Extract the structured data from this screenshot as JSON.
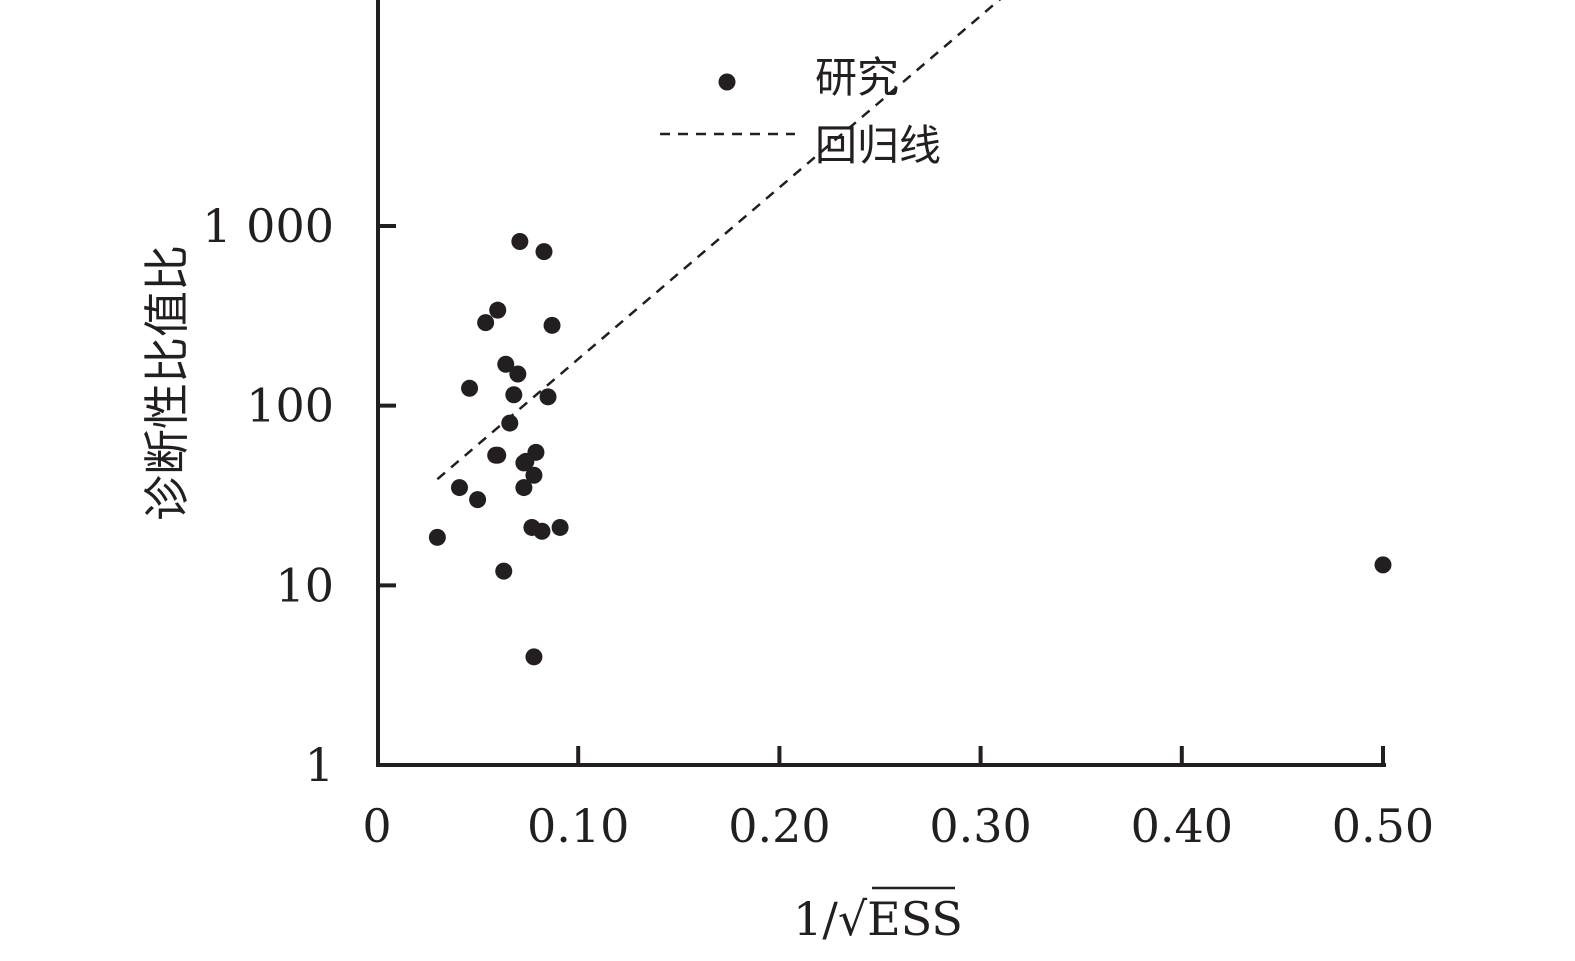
{
  "chart_data": {
    "type": "scatter",
    "xlabel": {
      "prefix": "1/",
      "radical": "√",
      "radicand": "ESS"
    },
    "ylabel": "诊断性比值比",
    "xlim": [
      0,
      0.5
    ],
    "ylim": [
      1,
      100000
    ],
    "y_scale": "log",
    "x_ticks": [
      0,
      0.1,
      0.2,
      0.3,
      0.4,
      0.5
    ],
    "x_tick_labels": [
      "0",
      "0.10",
      "0.20",
      "0.30",
      "0.40",
      "0.50"
    ],
    "y_ticks": [
      1,
      10,
      100,
      1000
    ],
    "y_tick_labels": [
      "1",
      "10",
      "100",
      "1 000"
    ],
    "grid": false,
    "legend_position": "top-center",
    "colors": {
      "points": "#231f20",
      "axis": "#231f20",
      "line": "#231f20"
    },
    "series": [
      {
        "name": "研究",
        "kind": "points",
        "x": [
          0.03,
          0.041,
          0.046,
          0.05,
          0.054,
          0.059,
          0.06,
          0.06,
          0.063,
          0.064,
          0.066,
          0.068,
          0.07,
          0.071,
          0.073,
          0.073,
          0.074,
          0.077,
          0.078,
          0.078,
          0.079,
          0.082,
          0.083,
          0.085,
          0.087,
          0.091,
          0.5
        ],
        "y": [
          18.5,
          35,
          125,
          30,
          290,
          53,
          340,
          53,
          12,
          170,
          80,
          115,
          150,
          820,
          48,
          35,
          49,
          21,
          4,
          41,
          55,
          20,
          720,
          112,
          280,
          21,
          13
        ]
      },
      {
        "name": "回归线",
        "kind": "line",
        "dashed": true,
        "x": [
          0.03,
          0.5
        ],
        "y": [
          39,
          1200000
        ]
      }
    ]
  }
}
